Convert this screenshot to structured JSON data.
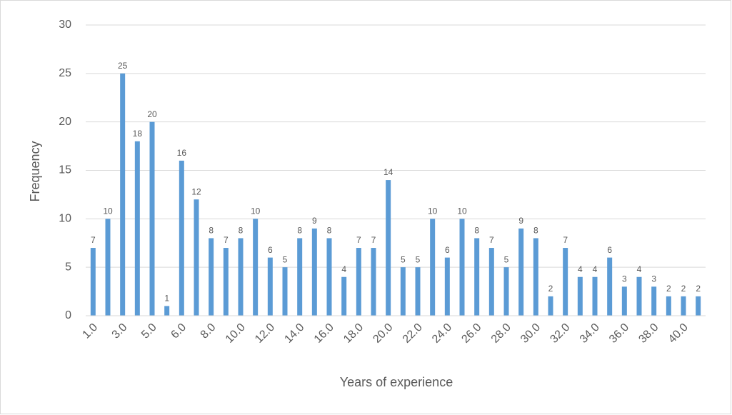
{
  "chart_data": {
    "type": "bar",
    "x_label": "Years of experience",
    "y_label": "Frequency",
    "categories": [
      "1.0",
      null,
      "3.0",
      null,
      "5.0",
      null,
      "6.0",
      null,
      "8.0",
      null,
      "10.0",
      null,
      "12.0",
      null,
      "14.0",
      null,
      "16.0",
      null,
      "18.0",
      null,
      "20.0",
      null,
      "22.0",
      null,
      "24.0",
      null,
      "26.0",
      null,
      "28.0",
      null,
      "30.0",
      null,
      "32.0",
      null,
      "34.0",
      null,
      "36.0",
      null,
      "38.0",
      null,
      "40.0",
      null
    ],
    "values": [
      7,
      10,
      25,
      18,
      20,
      1,
      16,
      12,
      8,
      7,
      8,
      10,
      6,
      5,
      8,
      9,
      8,
      4,
      7,
      7,
      14,
      5,
      5,
      10,
      6,
      10,
      8,
      7,
      5,
      9,
      8,
      2,
      7,
      4,
      4,
      6,
      3,
      4,
      3,
      2,
      2,
      2
    ],
    "color": "#5b9bd5",
    "ylim": [
      0,
      30
    ],
    "yticks": [
      0,
      5,
      10,
      15,
      20,
      25,
      30
    ],
    "grid": true,
    "data_labels": true
  }
}
